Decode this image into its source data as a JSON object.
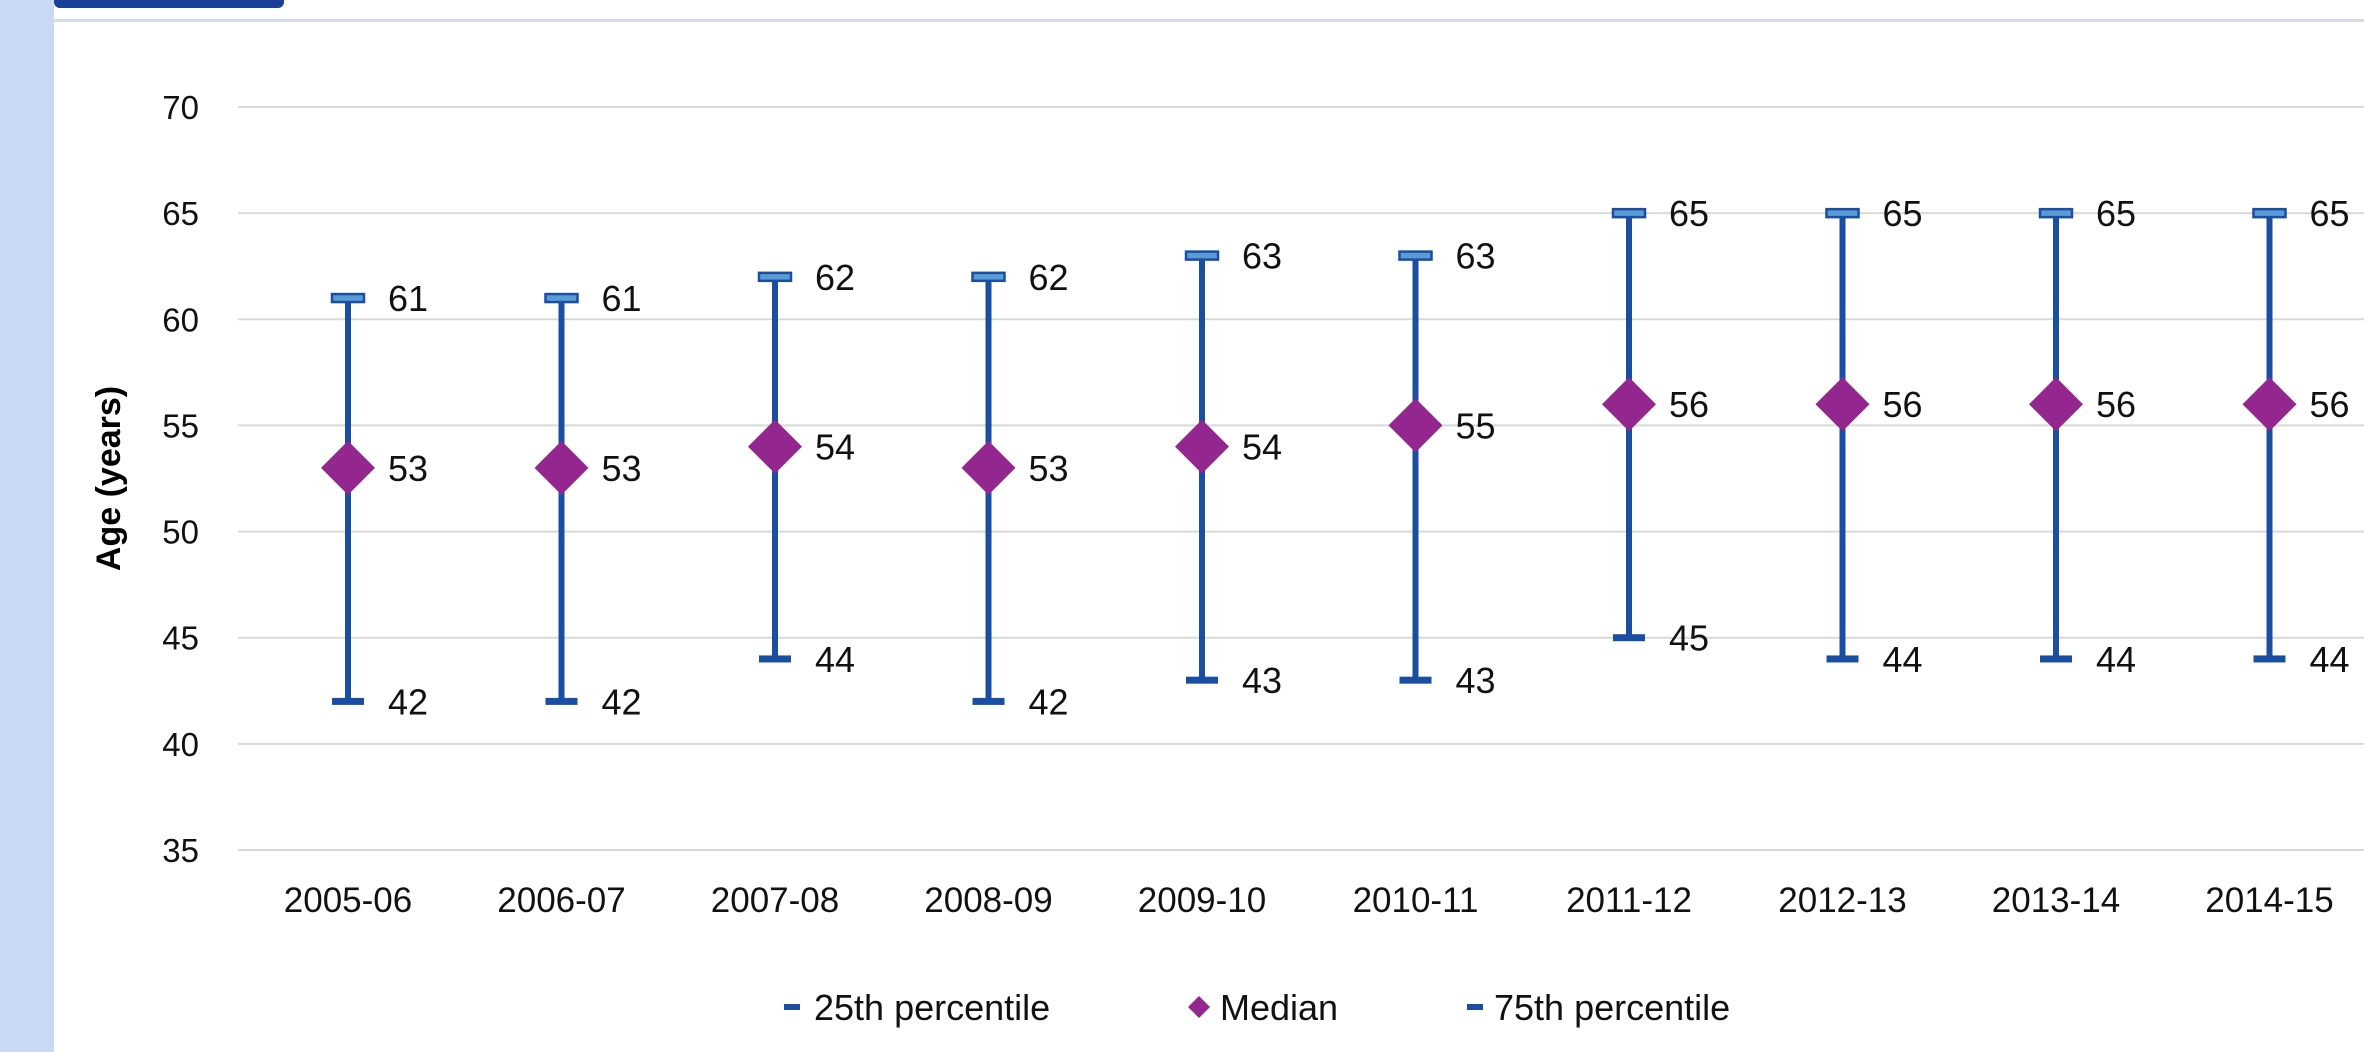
{
  "colors": {
    "whisker": "#1a4ea2",
    "cap_fill": "#5b9bd5",
    "median": "#93278f",
    "grid": "#d9d9d9",
    "side_band": "#c9d9f4"
  },
  "chart_data": {
    "type": "scatter",
    "ylabel": "Age (years)",
    "xlabel": "",
    "ylim": [
      35,
      70
    ],
    "yticks": [
      35,
      40,
      45,
      50,
      55,
      60,
      65,
      70
    ],
    "grid": true,
    "legend_placement": "bottom",
    "categories": [
      "2005-06",
      "2006-07",
      "2007-08",
      "2008-09",
      "2009-10",
      "2010-11",
      "2011-12",
      "2012-13",
      "2013-14",
      "2014-15"
    ],
    "series": [
      {
        "name": "25th percentile",
        "values": [
          42,
          42,
          44,
          42,
          43,
          43,
          45,
          44,
          44,
          44
        ]
      },
      {
        "name": "Median",
        "values": [
          53,
          53,
          54,
          53,
          54,
          55,
          56,
          56,
          56,
          56
        ]
      },
      {
        "name": "75th percentile",
        "values": [
          61,
          61,
          62,
          62,
          63,
          63,
          65,
          65,
          65,
          65
        ]
      }
    ]
  }
}
